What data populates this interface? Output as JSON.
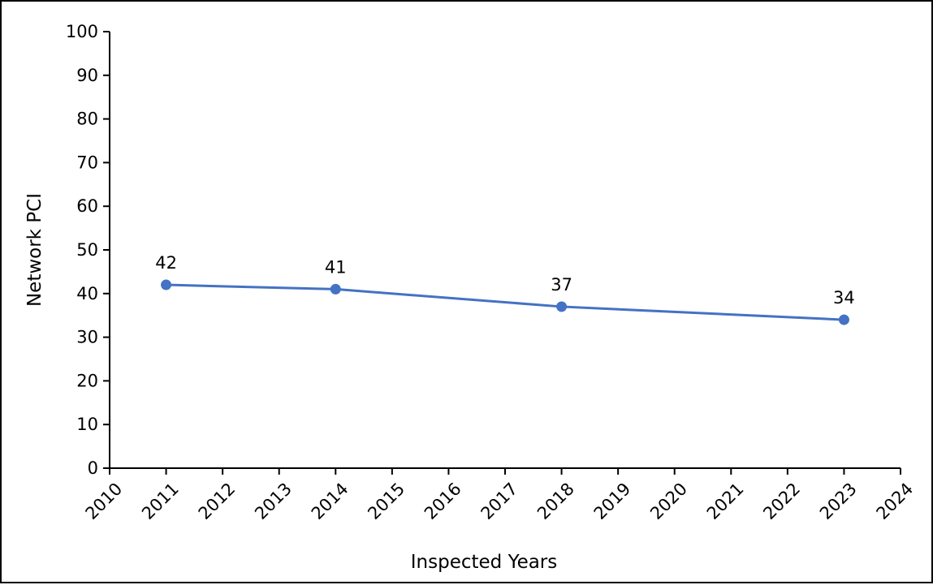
{
  "chart_data": {
    "type": "line",
    "title": "",
    "xlabel": "Inspected Years",
    "ylabel": "Network PCI",
    "xlim": [
      2010,
      2024
    ],
    "ylim": [
      0,
      100
    ],
    "x_ticks": [
      "2010",
      "2011",
      "2012",
      "2013",
      "2014",
      "2015",
      "2016",
      "2017",
      "2018",
      "2019",
      "2020",
      "2021",
      "2022",
      "2023",
      "2024"
    ],
    "y_ticks": [
      "0",
      "10",
      "20",
      "30",
      "40",
      "50",
      "60",
      "70",
      "80",
      "90",
      "100"
    ],
    "grid": false,
    "legend": "none",
    "series": [
      {
        "color": "#4472c4",
        "x": [
          2011,
          2014,
          2018,
          2023
        ],
        "y": [
          42,
          41,
          37,
          34
        ],
        "labels": [
          "42",
          "41",
          "37",
          "34"
        ]
      }
    ]
  }
}
